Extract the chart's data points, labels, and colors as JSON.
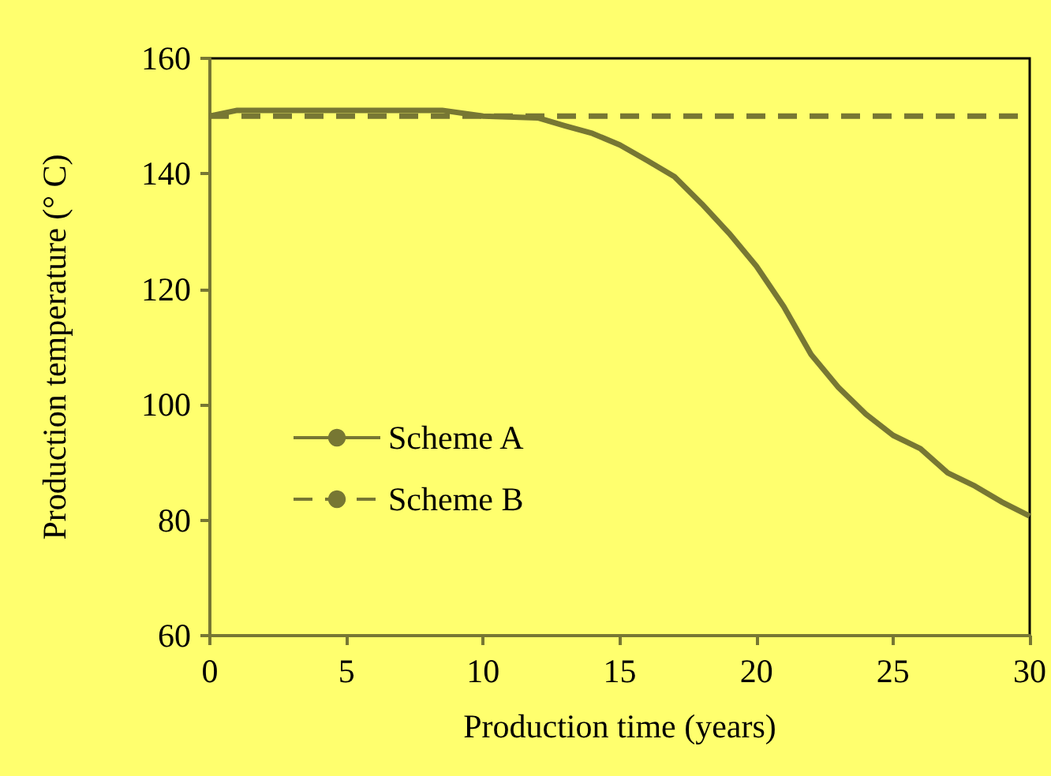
{
  "chart_data": {
    "type": "line",
    "xlabel": "Production time (years)",
    "ylabel": "Production temperature (° C)",
    "xlim": [
      0,
      30
    ],
    "xticks": [
      0,
      5,
      10,
      15,
      20,
      25,
      30
    ],
    "ylim": [
      60,
      160
    ],
    "yticks": [
      60,
      80,
      100,
      120,
      140,
      160
    ],
    "grid": false,
    "legend": "bottom left",
    "marker": "none",
    "series": [
      {
        "name": "Scheme A",
        "color": "#777733",
        "line_style": "solid",
        "x": [
          0,
          1,
          3,
          5,
          7,
          8.5,
          10,
          12,
          13,
          14,
          15,
          16,
          17,
          18,
          19,
          20,
          21,
          22,
          23,
          24,
          25,
          26,
          27,
          28,
          29,
          30
        ],
        "values": [
          150,
          151,
          151,
          151,
          151,
          151,
          150,
          149.7,
          148.3,
          147,
          145,
          142.3,
          139.5,
          134.8,
          129.7,
          124,
          117,
          108.7,
          103,
          98.4,
          94.7,
          92.4,
          88.2,
          85.9,
          83.1,
          80.7
        ]
      },
      {
        "name": "Scheme B",
        "color": "#777733",
        "line_style": "dashed",
        "x": [
          0,
          30
        ],
        "values": [
          150,
          150
        ]
      }
    ]
  }
}
